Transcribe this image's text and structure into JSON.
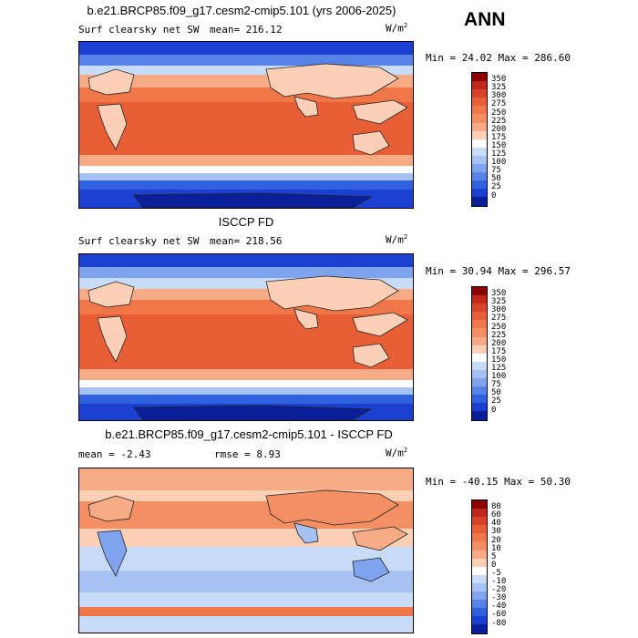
{
  "season": "ANN",
  "panels": [
    {
      "title": "b.e21.BRCP85.f09_g17.cesm2-cmip5.101 (yrs 2006-2025)",
      "variable": "Surf clearsky net SW",
      "mean_text": "mean= 216.12",
      "units": "W/m",
      "units_sup": "2",
      "minmax_text": "Min =  24.02 Max = 286.60"
    },
    {
      "title": "ISCCP FD",
      "variable": "Surf clearsky net SW",
      "mean_text": "mean= 218.56",
      "units": "W/m",
      "units_sup": "2",
      "minmax_text": "Min =  30.94 Max = 296.57"
    },
    {
      "title": "b.e21.BRCP85.f09_g17.cesm2-cmip5.101 - ISCCP FD",
      "mean_text": "mean =   -2.43",
      "rmse_text": "rmse =   8.93",
      "units": "W/m",
      "units_sup": "2",
      "minmax_text": "Min = -40.15 Max =  50.30"
    }
  ],
  "colorbar_abs": {
    "labels": [
      "350",
      "325",
      "300",
      "275",
      "250",
      "225",
      "200",
      "175",
      "150",
      "125",
      "100",
      "75",
      "50",
      "25",
      "0"
    ],
    "colors": [
      "#8b0000",
      "#c0281c",
      "#d9432a",
      "#e85f37",
      "#f0774a",
      "#f48f63",
      "#f7ab85",
      "#fbd0b7",
      "#ffffff",
      "#c9dcf7",
      "#a5c2f2",
      "#7fa3ec",
      "#5883e6",
      "#3062e0",
      "#1b3fd1",
      "#0a1f9a"
    ]
  },
  "colorbar_diff": {
    "labels": [
      "80",
      "60",
      "40",
      "30",
      "20",
      "10",
      "5",
      "0",
      "-5",
      "-10",
      "-20",
      "-30",
      "-40",
      "-60",
      "-80"
    ],
    "colors": [
      "#8b0000",
      "#c0281c",
      "#d9432a",
      "#e85f37",
      "#f0774a",
      "#f48f63",
      "#f7ab85",
      "#fbd0b7",
      "#ffffff",
      "#c9dcf7",
      "#a5c2f2",
      "#7fa3ec",
      "#5883e6",
      "#3062e0",
      "#1b3fd1",
      "#0a1f9a"
    ]
  },
  "chart_data": [
    {
      "type": "heatmap",
      "title": "b.e21.BRCP85.f09_g17.cesm2-cmip5.101 (yrs 2006-2025)",
      "variable": "Surf clearsky net SW",
      "units": "W/m2",
      "mean": 216.12,
      "min": 24.02,
      "max": 286.6,
      "contour_levels": [
        0,
        25,
        50,
        75,
        100,
        125,
        150,
        175,
        200,
        225,
        250,
        275,
        300,
        325,
        350
      ]
    },
    {
      "type": "heatmap",
      "title": "ISCCP FD",
      "variable": "Surf clearsky net SW",
      "units": "W/m2",
      "mean": 218.56,
      "min": 30.94,
      "max": 296.57,
      "contour_levels": [
        0,
        25,
        50,
        75,
        100,
        125,
        150,
        175,
        200,
        225,
        250,
        275,
        300,
        325,
        350
      ]
    },
    {
      "type": "heatmap",
      "title": "b.e21.BRCP85.f09_g17.cesm2-cmip5.101 - ISCCP FD",
      "units": "W/m2",
      "mean": -2.43,
      "rmse": 8.93,
      "min": -40.15,
      "max": 50.3,
      "contour_levels": [
        -80,
        -60,
        -40,
        -30,
        -20,
        -10,
        -5,
        0,
        5,
        10,
        20,
        30,
        40,
        60,
        80
      ]
    }
  ]
}
